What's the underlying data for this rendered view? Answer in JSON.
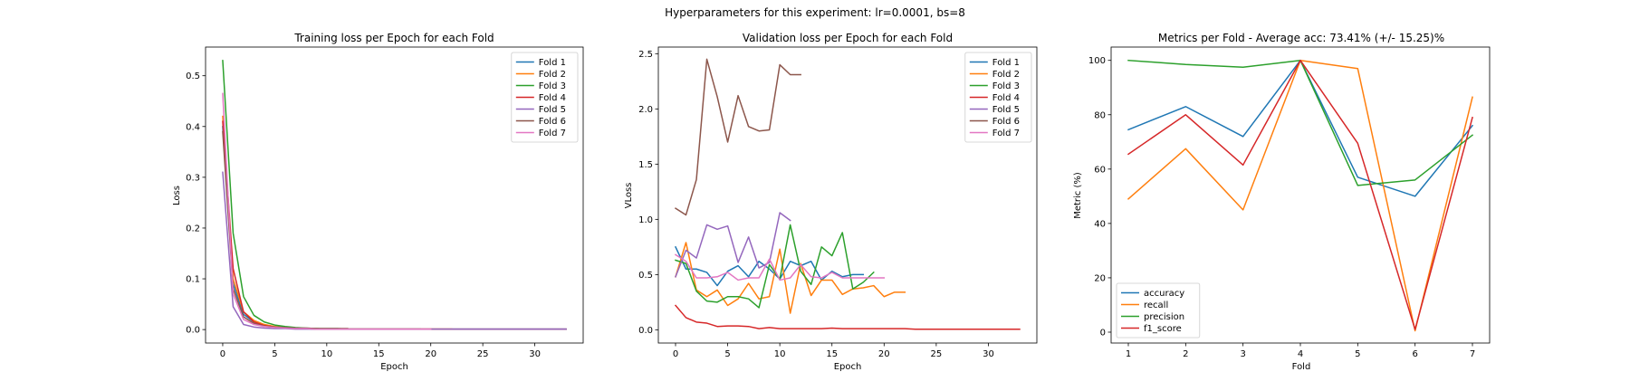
{
  "figure": {
    "suptitle": "Hyperparameters for this experiment: lr=0.0001, bs=8"
  },
  "colors": {
    "c0": "#1f77b4",
    "c1": "#ff7f0e",
    "c2": "#2ca02c",
    "c3": "#d62728",
    "c4": "#9467bd",
    "c5": "#8c564b",
    "c6": "#e377c2"
  },
  "chart_data": [
    {
      "type": "line",
      "title": "Training loss per Epoch for each Fold",
      "xlabel": "Epoch",
      "ylabel": "Loss",
      "xlim": [
        -1.65,
        34.65
      ],
      "ylim": [
        -0.0265,
        0.5565
      ],
      "xticks": [
        0,
        5,
        10,
        15,
        20,
        25,
        30
      ],
      "yticks": [
        0.0,
        0.1,
        0.2,
        0.3,
        0.4,
        0.5
      ],
      "ytick_labels": [
        "0.0",
        "0.1",
        "0.2",
        "0.3",
        "0.4",
        "0.5"
      ],
      "legend_loc": "upper right",
      "series": [
        {
          "name": "Fold 1",
          "color": "#1f77b4",
          "x": [
            0,
            1,
            2,
            3,
            4,
            5,
            6,
            7,
            8,
            9,
            10,
            11,
            12,
            13,
            14,
            15,
            16,
            17,
            18,
            19,
            20,
            21,
            22,
            23,
            24,
            25,
            26,
            27,
            28,
            29,
            30,
            31,
            32,
            33
          ],
          "y": [
            0.4,
            0.09,
            0.03,
            0.015,
            0.008,
            0.005,
            0.004,
            0.003,
            0.002,
            0.002,
            0.001,
            0.001,
            0.001,
            0.001,
            0.001,
            0.001,
            0.001,
            0.001,
            0.001,
            0.001,
            0.001,
            0.001,
            0.001,
            0.001,
            0.001,
            0.001,
            0.001,
            0.001,
            0.001,
            0.001,
            0.001,
            0.001,
            0.001,
            0.001
          ]
        },
        {
          "name": "Fold 2",
          "color": "#ff7f0e",
          "x": [
            0,
            1,
            2,
            3,
            4,
            5,
            6,
            7,
            8,
            9,
            10,
            11,
            12,
            13,
            14,
            15,
            16,
            17,
            18,
            19,
            20,
            21,
            22
          ],
          "y": [
            0.42,
            0.1,
            0.035,
            0.018,
            0.01,
            0.006,
            0.004,
            0.003,
            0.002,
            0.002,
            0.001,
            0.001,
            0.001,
            0.001,
            0.001,
            0.001,
            0.001,
            0.001,
            0.001,
            0.001,
            0.001,
            0.001,
            0.001
          ]
        },
        {
          "name": "Fold 3",
          "color": "#2ca02c",
          "x": [
            0,
            1,
            2,
            3,
            4,
            5,
            6,
            7,
            8,
            9,
            10,
            11,
            12,
            13,
            14,
            15,
            16,
            17,
            18,
            19
          ],
          "y": [
            0.53,
            0.19,
            0.065,
            0.028,
            0.015,
            0.009,
            0.006,
            0.004,
            0.003,
            0.002,
            0.002,
            0.002,
            0.001,
            0.001,
            0.001,
            0.001,
            0.001,
            0.001,
            0.001,
            0.001
          ]
        },
        {
          "name": "Fold 4",
          "color": "#d62728",
          "x": [
            0,
            1,
            2,
            3,
            4,
            5,
            6,
            7,
            8,
            9,
            10,
            11,
            12,
            13,
            14,
            15,
            16,
            17,
            18,
            19,
            20,
            21,
            22,
            23,
            24,
            25,
            26,
            27,
            28,
            29,
            30,
            31,
            32,
            33
          ],
          "y": [
            0.41,
            0.12,
            0.035,
            0.015,
            0.008,
            0.005,
            0.003,
            0.002,
            0.002,
            0.001,
            0.001,
            0.001,
            0.001,
            0.001,
            0.001,
            0.001,
            0.001,
            0.001,
            0.001,
            0.001,
            0.001,
            0.001,
            0.001,
            0.001,
            0.001,
            0.001,
            0.001,
            0.001,
            0.001,
            0.001,
            0.001,
            0.001,
            0.001,
            0.001
          ]
        },
        {
          "name": "Fold 5",
          "color": "#9467bd",
          "x": [
            0,
            1,
            2,
            3,
            4,
            5,
            6,
            7,
            8,
            9,
            10,
            11,
            12,
            13,
            14,
            15,
            16,
            17,
            18,
            19,
            20,
            21,
            22,
            23,
            24,
            25,
            26,
            27,
            28,
            29,
            30,
            31,
            32,
            33
          ],
          "y": [
            0.31,
            0.045,
            0.01,
            0.005,
            0.003,
            0.002,
            0.002,
            0.001,
            0.001,
            0.001,
            0.001,
            0.001,
            0.001,
            0.001,
            0.001,
            0.001,
            0.001,
            0.001,
            0.001,
            0.001,
            0.001,
            0.001,
            0.001,
            0.001,
            0.001,
            0.001,
            0.001,
            0.001,
            0.001,
            0.001,
            0.001,
            0.001,
            0.001,
            0.001
          ]
        },
        {
          "name": "Fold 6",
          "color": "#8c564b",
          "x": [
            0,
            1,
            2,
            3,
            4,
            5,
            6,
            7,
            8,
            9,
            10,
            11,
            12
          ],
          "y": [
            0.39,
            0.08,
            0.025,
            0.012,
            0.007,
            0.005,
            0.004,
            0.003,
            0.003,
            0.002,
            0.002,
            0.002,
            0.002
          ]
        },
        {
          "name": "Fold 7",
          "color": "#e377c2",
          "x": [
            0,
            1,
            2,
            3,
            4,
            5,
            6,
            7,
            8,
            9,
            10,
            11,
            12,
            13,
            14,
            15,
            16,
            17,
            18,
            19,
            20
          ],
          "y": [
            0.465,
            0.07,
            0.02,
            0.01,
            0.006,
            0.004,
            0.003,
            0.002,
            0.002,
            0.001,
            0.001,
            0.001,
            0.001,
            0.001,
            0.001,
            0.001,
            0.001,
            0.001,
            0.001,
            0.001,
            0.001
          ]
        }
      ]
    },
    {
      "type": "line",
      "title": "Validation loss per Epoch for each Fold",
      "xlabel": "Epoch",
      "ylabel": "VLoss",
      "xlim": [
        -1.65,
        34.65
      ],
      "ylim": [
        -0.12,
        2.56
      ],
      "xticks": [
        0,
        5,
        10,
        15,
        20,
        25,
        30
      ],
      "yticks": [
        0.0,
        0.5,
        1.0,
        1.5,
        2.0,
        2.5
      ],
      "ytick_labels": [
        "0.0",
        "0.5",
        "1.0",
        "1.5",
        "2.0",
        "2.5"
      ],
      "legend_loc": "upper right",
      "series": [
        {
          "name": "Fold 1",
          "color": "#1f77b4",
          "x": [
            0,
            1,
            2,
            3,
            4,
            5,
            6,
            7,
            8,
            9,
            10,
            11,
            12,
            13,
            14,
            15,
            16,
            17,
            18
          ],
          "y": [
            0.75,
            0.55,
            0.55,
            0.52,
            0.4,
            0.53,
            0.58,
            0.48,
            0.62,
            0.55,
            0.46,
            0.62,
            0.58,
            0.62,
            0.45,
            0.53,
            0.48,
            0.5,
            0.5
          ]
        },
        {
          "name": "Fold 2",
          "color": "#ff7f0e",
          "x": [
            0,
            1,
            2,
            3,
            4,
            5,
            6,
            7,
            8,
            9,
            10,
            11,
            12,
            13,
            14,
            15,
            16,
            17,
            18,
            19,
            20,
            21,
            22
          ],
          "y": [
            0.48,
            0.79,
            0.36,
            0.3,
            0.36,
            0.22,
            0.28,
            0.42,
            0.28,
            0.3,
            0.73,
            0.15,
            0.6,
            0.31,
            0.45,
            0.45,
            0.32,
            0.37,
            0.38,
            0.4,
            0.3,
            0.34,
            0.34
          ]
        },
        {
          "name": "Fold 3",
          "color": "#2ca02c",
          "x": [
            0,
            1,
            2,
            3,
            4,
            5,
            6,
            7,
            8,
            9,
            10,
            11,
            12,
            13,
            14,
            15,
            16,
            17,
            18,
            19
          ],
          "y": [
            0.63,
            0.6,
            0.35,
            0.26,
            0.25,
            0.3,
            0.3,
            0.28,
            0.2,
            0.59,
            0.46,
            0.95,
            0.53,
            0.41,
            0.75,
            0.67,
            0.88,
            0.37,
            0.43,
            0.52
          ]
        },
        {
          "name": "Fold 4",
          "color": "#d62728",
          "x": [
            0,
            1,
            2,
            3,
            4,
            5,
            6,
            7,
            8,
            9,
            10,
            11,
            12,
            13,
            14,
            15,
            16,
            17,
            18,
            19,
            20,
            21,
            22,
            23,
            24,
            25,
            26,
            27,
            28,
            29,
            30,
            31,
            32,
            33
          ],
          "y": [
            0.22,
            0.11,
            0.07,
            0.06,
            0.03,
            0.035,
            0.035,
            0.03,
            0.01,
            0.02,
            0.01,
            0.01,
            0.01,
            0.01,
            0.01,
            0.015,
            0.01,
            0.01,
            0.01,
            0.01,
            0.01,
            0.01,
            0.01,
            0.005,
            0.005,
            0.005,
            0.005,
            0.005,
            0.005,
            0.005,
            0.005,
            0.005,
            0.005,
            0.005
          ]
        },
        {
          "name": "Fold 5",
          "color": "#9467bd",
          "x": [
            0,
            1,
            2,
            3,
            4,
            5,
            6,
            7,
            8,
            9,
            10,
            11
          ],
          "y": [
            0.48,
            0.72,
            0.65,
            0.95,
            0.91,
            0.94,
            0.61,
            0.84,
            0.56,
            0.61,
            1.06,
            0.99
          ]
        },
        {
          "name": "Fold 6",
          "color": "#8c564b",
          "x": [
            0,
            1,
            2,
            3,
            4,
            5,
            6,
            7,
            8,
            9,
            10,
            11,
            12
          ],
          "y": [
            1.1,
            1.04,
            1.36,
            2.45,
            2.11,
            1.7,
            2.12,
            1.84,
            1.8,
            1.81,
            2.4,
            2.31,
            2.31
          ]
        },
        {
          "name": "Fold 7",
          "color": "#e377c2",
          "x": [
            0,
            1,
            2,
            3,
            4,
            5,
            6,
            7,
            8,
            9,
            10,
            11,
            12,
            13,
            14,
            15,
            16,
            17,
            18,
            19,
            20
          ],
          "y": [
            0.68,
            0.62,
            0.47,
            0.47,
            0.48,
            0.52,
            0.45,
            0.47,
            0.47,
            0.64,
            0.45,
            0.47,
            0.59,
            0.48,
            0.47,
            0.52,
            0.47,
            0.47,
            0.47,
            0.47,
            0.47
          ]
        }
      ]
    },
    {
      "type": "line",
      "title": "Metrics per Fold - Average acc: 73.41% (+/- 15.25)%",
      "xlabel": "Fold",
      "ylabel": "Metric (%)",
      "xlim": [
        0.7,
        7.3
      ],
      "ylim": [
        -4.0,
        104.9
      ],
      "xticks": [
        1,
        2,
        3,
        4,
        5,
        6,
        7
      ],
      "yticks": [
        0,
        20,
        40,
        60,
        80,
        100
      ],
      "ytick_labels": [
        "0",
        "20",
        "40",
        "60",
        "80",
        "100"
      ],
      "legend_loc": "lower left",
      "series": [
        {
          "name": "accuracy",
          "color": "#1f77b4",
          "x": [
            1,
            2,
            3,
            4,
            5,
            6,
            7
          ],
          "y": [
            74.5,
            83.0,
            72.0,
            100.0,
            57.0,
            50.0,
            76.0
          ]
        },
        {
          "name": "recall",
          "color": "#ff7f0e",
          "x": [
            1,
            2,
            3,
            4,
            5,
            6,
            7
          ],
          "y": [
            49.0,
            67.5,
            45.0,
            100.0,
            97.0,
            0.5,
            86.5
          ]
        },
        {
          "name": "precision",
          "color": "#2ca02c",
          "x": [
            1,
            2,
            3,
            4,
            5,
            6,
            7
          ],
          "y": [
            100.0,
            98.5,
            97.5,
            100.0,
            54.0,
            56.0,
            72.5
          ]
        },
        {
          "name": "f1_score",
          "color": "#d62728",
          "x": [
            1,
            2,
            3,
            4,
            5,
            6,
            7
          ],
          "y": [
            65.5,
            80.0,
            61.5,
            100.0,
            69.5,
            1.0,
            79.0
          ]
        }
      ]
    }
  ]
}
